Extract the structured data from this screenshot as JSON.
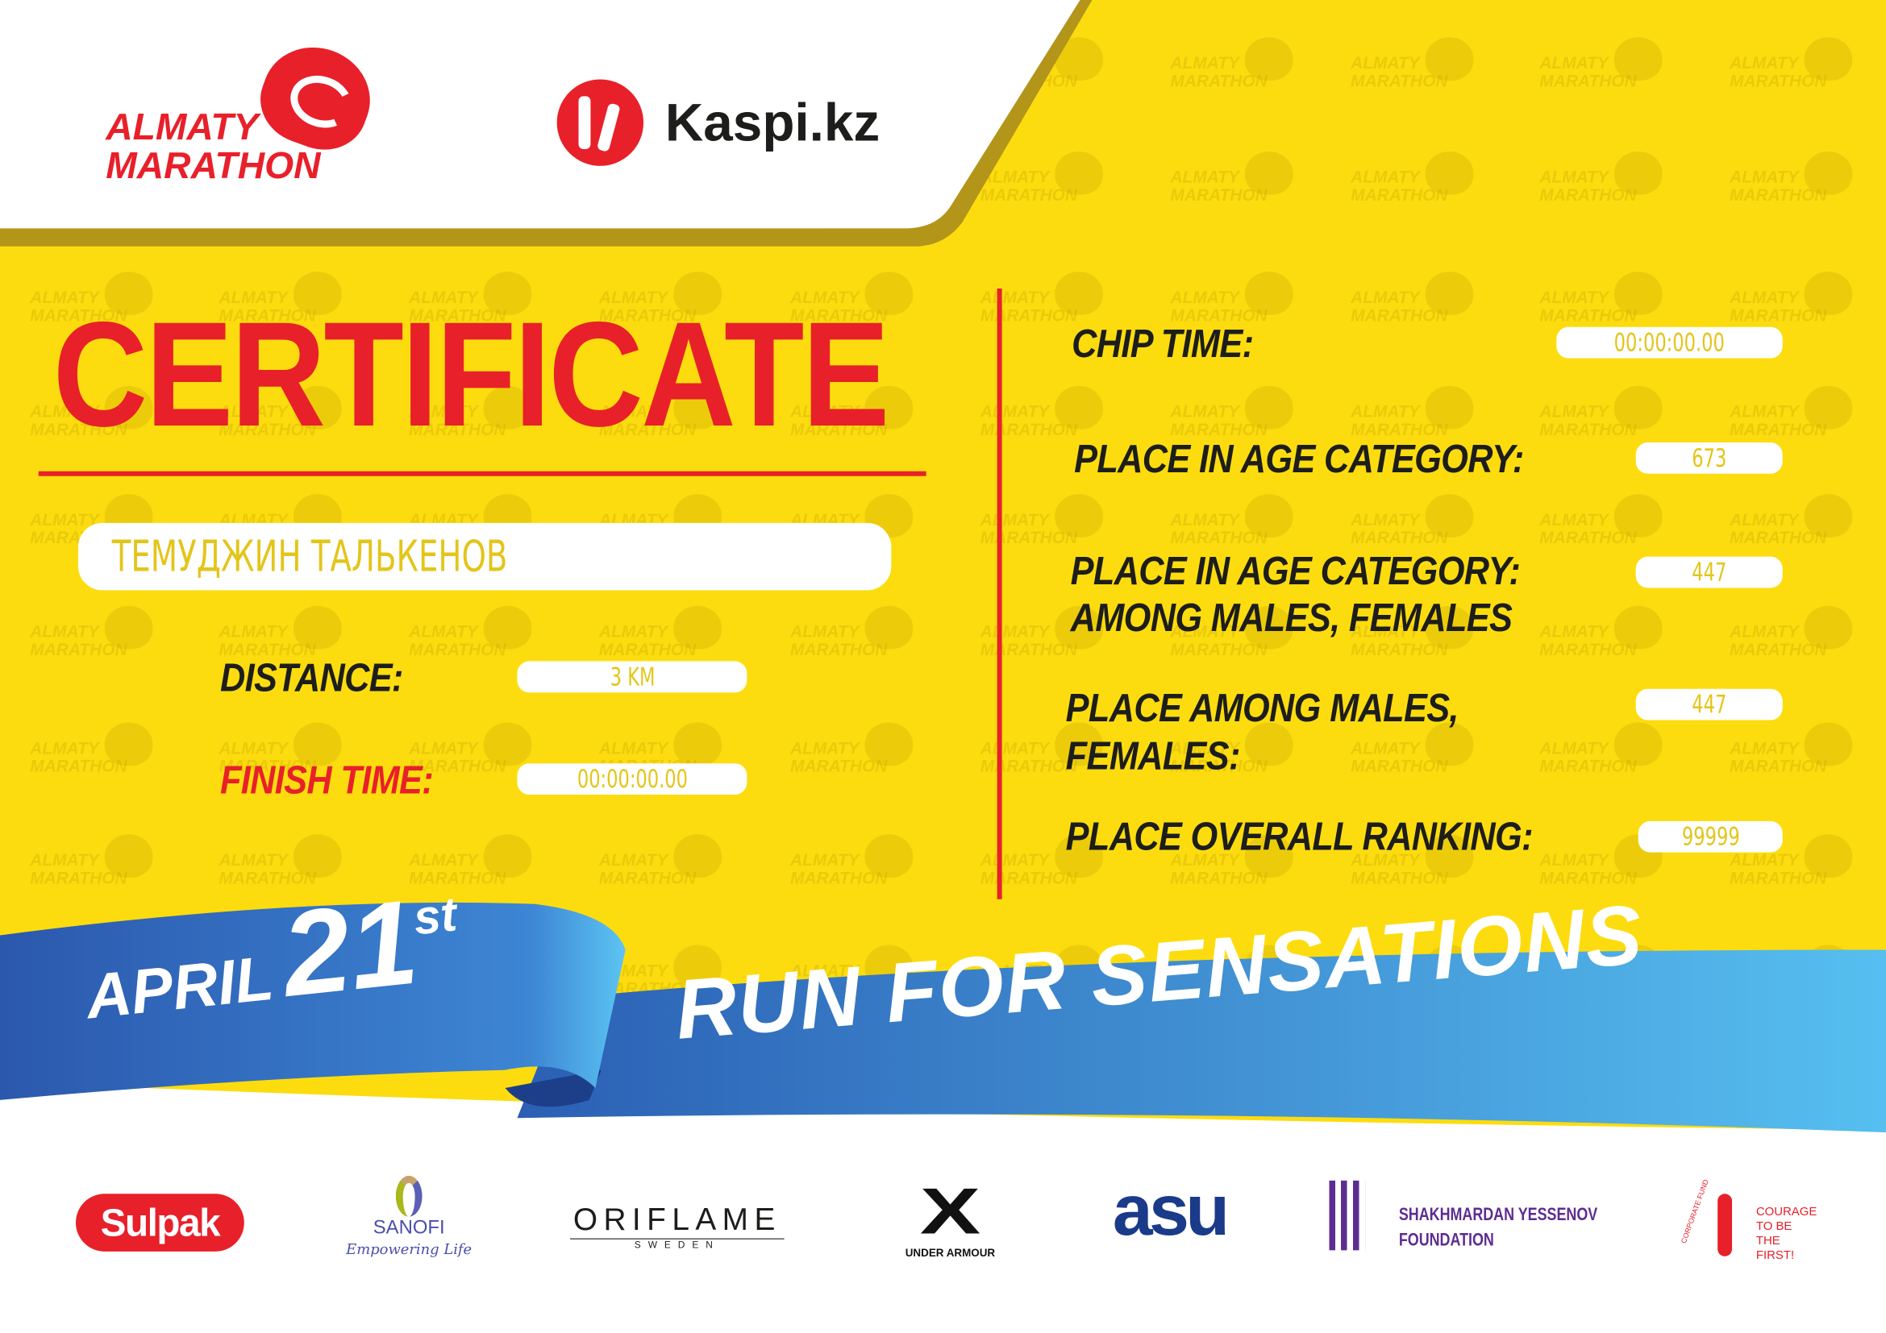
{
  "header": {
    "event_logo": {
      "line1": "ALMATY",
      "line2": "MARATHON"
    },
    "sponsor_logo": "Kaspi.kz"
  },
  "watermark": "ALMATY\nMARATHON",
  "certificate": {
    "title": "CERTIFICATE",
    "participant_name": "ТЕМУДЖИН ТАЛЬКЕНОВ",
    "distance_label": "DISTANCE:",
    "distance_value": "3 KM",
    "finish_time_label": "FINISH TIME:",
    "finish_time_value": "00:00:00.00"
  },
  "results": {
    "chip_time_label": "CHIP TIME:",
    "chip_time_value": "00:00:00.00",
    "age_category_label": "PLACE IN AGE CATEGORY:",
    "age_category_value": "673",
    "age_category_gender_label_1": "PLACE IN AGE CATEGORY:",
    "age_category_gender_label_2": "AMONG MALES, FEMALES",
    "age_category_gender_value": "447",
    "gender_label_1": "PLACE AMONG MALES,",
    "gender_label_2": "FEMALES:",
    "gender_value": "447",
    "overall_label": "PLACE OVERALL RANKING:",
    "overall_value": "99999"
  },
  "banner": {
    "month": "APRIL",
    "day": "21",
    "suffix": "st",
    "slogan": "RUN FOR SENSATIONS"
  },
  "sponsors": {
    "sulpak": "Sulpak",
    "sanofi": "SANOFI",
    "sanofi_tagline": "Empowering Life",
    "oriflame": "ORIFLAME",
    "oriflame_sub": "SWEDEN",
    "under_armour": "UNDER ARMOUR",
    "asu": "asu",
    "yessenov_1": "SHAKHMARDAN YESSENOV",
    "yessenov_2": "FOUNDATION",
    "courage_arc": "CORPORATE FUND",
    "courage_1": "COURAGE",
    "courage_2": "TO BE",
    "courage_3": "THE FIRST!"
  },
  "colors": {
    "yellow": "#fcdc0f",
    "red": "#e8202a",
    "dark": "#1d1d1b",
    "blue_dark": "#2b5fb4",
    "blue_light": "#56bff0",
    "value_text": "#e3c51a"
  }
}
